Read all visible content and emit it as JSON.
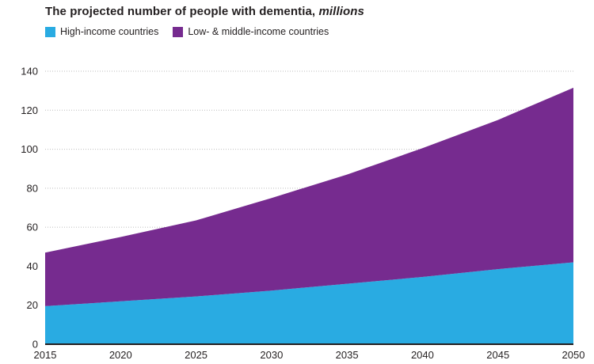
{
  "header": {
    "title_prefix": "The projected number of people with dementia, ",
    "title_emphasis": "millions"
  },
  "legend": [
    {
      "label": "High-income countries",
      "color": "#29abe2"
    },
    {
      "label": "Low- & middle-income countries",
      "color": "#762b8f"
    }
  ],
  "colors": {
    "axis": "#231f20",
    "gridline": "#bdbdbd",
    "text": "#231f20"
  },
  "chart_data": {
    "type": "area",
    "stacked": true,
    "title": "The projected number of people with dementia, millions",
    "x": [
      2015,
      2020,
      2025,
      2030,
      2035,
      2040,
      2045,
      2050
    ],
    "series": [
      {
        "name": "High-income countries",
        "color": "#29abe2",
        "values": [
          19.5,
          22,
          24.5,
          27.5,
          31,
          34.5,
          38.5,
          42
        ]
      },
      {
        "name": "Low- & middle-income countries",
        "color": "#762b8f",
        "values": [
          27.5,
          33,
          39,
          47.5,
          56,
          66,
          76.5,
          89.5
        ]
      }
    ],
    "totals": [
      47,
      55,
      63.5,
      75,
      87,
      100.5,
      115,
      131.5
    ],
    "xlabel": "",
    "ylabel": "",
    "ylim": [
      0,
      140
    ],
    "yticks": [
      0,
      20,
      40,
      60,
      80,
      100,
      120,
      140
    ],
    "xticks": [
      2015,
      2020,
      2025,
      2030,
      2035,
      2040,
      2045,
      2050
    ],
    "grid": true,
    "legend_position": "top-left"
  }
}
